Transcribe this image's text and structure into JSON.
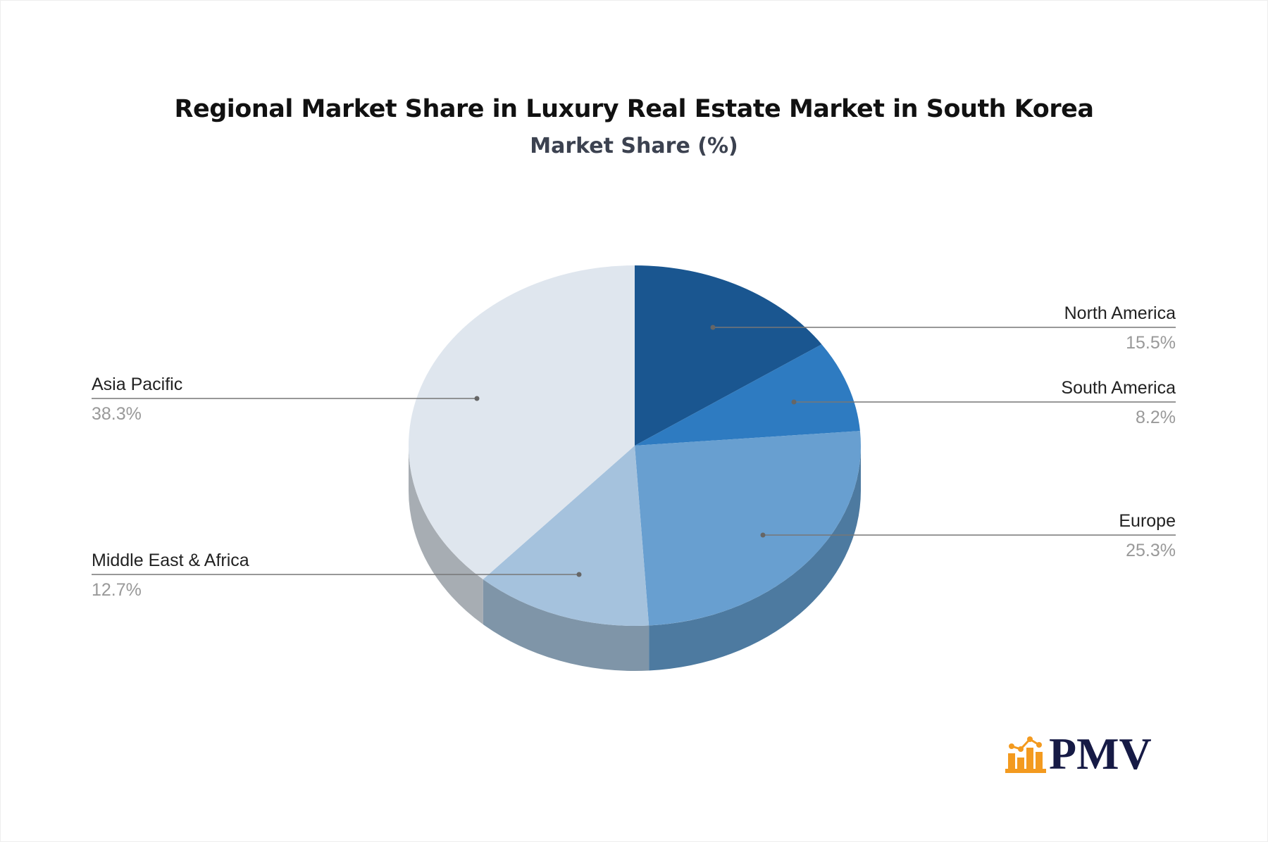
{
  "title": "Regional Market Share in Luxury Real Estate Market in South Korea",
  "subtitle": "Market Share (%)",
  "logo": {
    "text": "PMV",
    "icon": "bar-chart-icon",
    "colors": {
      "icon": "#f39a1f",
      "text": "#161a45"
    }
  },
  "chart_data": {
    "type": "pie",
    "style": "3d",
    "title": "Regional Market Share in Luxury Real Estate Market in South Korea",
    "subtitle": "Market Share (%)",
    "unit": "%",
    "slices": [
      {
        "label": "North America",
        "value": 15.5,
        "display": "15.5%",
        "color": "#1a5690",
        "side_color": "#14426f",
        "label_side": "right"
      },
      {
        "label": "South America",
        "value": 8.2,
        "display": "8.2%",
        "color": "#2e7bc1",
        "side_color": "#245f94",
        "label_side": "right"
      },
      {
        "label": "Europe",
        "value": 25.3,
        "display": "25.3%",
        "color": "#689fd0",
        "side_color": "#4d7aa0",
        "label_side": "right"
      },
      {
        "label": "Middle East & Africa",
        "value": 12.7,
        "display": "12.7%",
        "color": "#a5c2dd",
        "side_color": "#7f95a8",
        "label_side": "left"
      },
      {
        "label": "Asia Pacific",
        "value": 38.3,
        "display": "38.3%",
        "color": "#dfe6ee",
        "side_color": "#a7adb3",
        "label_side": "left"
      }
    ],
    "start_angle": "12 o'clock",
    "direction": "clockwise",
    "legend": "none (leader-line labels)"
  }
}
